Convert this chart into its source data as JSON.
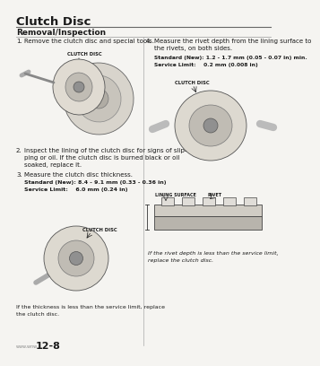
{
  "title": "Clutch Disc",
  "section": "Removal/Inspection",
  "bg_color": "#f5f4f1",
  "text_color": "#1a1a1a",
  "page_number": "12-8",
  "page_prefix": "www.wnw",
  "step1": "Remove the clutch disc and special tools.",
  "step2_line1": "Inspect the lining of the clutch disc for signs of slip-",
  "step2_line2": "ping or oil. If the clutch disc is burned black or oil",
  "step2_line3": "soaked, replace it.",
  "step3": "Measure the clutch disc thickness.",
  "spec1_bold": "Standard (New): 8.4 - 9.1 mm (0.33 - 0.36 in)",
  "spec1_normal": "Service Limit:    6.0 mm (0.24 in)",
  "note1_line1": "If the thickness is less than the service limit, replace",
  "note1_line2": "the clutch disc.",
  "step4_line1": "Measure the rivet depth from the lining surface to",
  "step4_line2": "the rivets, on both sides.",
  "spec2_bold": "Standard (New): 1.2 - 1.7 mm (0.05 - 0.07 in) min.",
  "spec2_normal": "Service Limit:    0.2 mm (0.008 in)",
  "note2_line1": "If the rivet depth is less than the service limit,",
  "note2_line2": "replace the clutch disc.",
  "label_clutch": "CLUTCH DISC",
  "label_lining": "LINING SURFACE",
  "label_rivet": "RIVET"
}
